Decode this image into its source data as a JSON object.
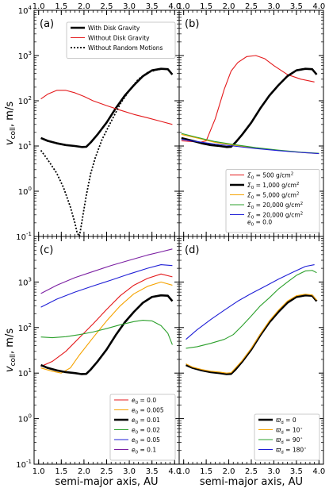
{
  "figure": {
    "xlabel": "semi-major axis, AU",
    "ylabel_main": "v",
    "ylabel_sub": "coll",
    "ylabel_suffix": ", m/s"
  },
  "chart_data": [
    {
      "type": "line",
      "panel_label": "(a)",
      "x_ticks": [
        "1.0",
        "1.5",
        "2.0",
        "2.5",
        "3.0",
        "3.5",
        "4.0"
      ],
      "y_ticks": [
        {
          "base": "10",
          "exp": "-1"
        },
        {
          "base": "10",
          "exp": "0"
        },
        {
          "base": "10",
          "exp": "1"
        },
        {
          "base": "10",
          "exp": "2"
        },
        {
          "base": "10",
          "exp": "3"
        },
        {
          "base": "10",
          "exp": "4"
        }
      ],
      "xlim": [
        0.9,
        4.1
      ],
      "ylim": [
        0.1,
        10000
      ],
      "yscale": "log",
      "legend_position": "top-right",
      "series": [
        {
          "name": "With Disk Gravity",
          "color": "#000000",
          "width": 2.6,
          "dash": "",
          "x": [
            1.05,
            1.2,
            1.4,
            1.6,
            1.8,
            1.95,
            2.05,
            2.15,
            2.3,
            2.5,
            2.7,
            2.9,
            3.1,
            3.3,
            3.5,
            3.7,
            3.85,
            3.95
          ],
          "y": [
            15,
            13,
            11.5,
            10.5,
            10,
            9.5,
            9.6,
            12,
            18,
            33,
            68,
            130,
            220,
            350,
            470,
            510,
            500,
            380
          ]
        },
        {
          "name": "Without Disk Gravity",
          "color": "#e41a1c",
          "width": 1.1,
          "dash": "",
          "x": [
            1.05,
            1.2,
            1.4,
            1.6,
            1.8,
            2.0,
            2.2,
            2.5,
            2.8,
            3.1,
            3.4,
            3.7,
            3.95
          ],
          "y": [
            110,
            140,
            170,
            170,
            150,
            125,
            100,
            78,
            62,
            50,
            42,
            35,
            30
          ]
        },
        {
          "name": "Without Random Motions",
          "color": "#000000",
          "width": 1.8,
          "dash": "2,2",
          "x": [
            1.05,
            1.2,
            1.4,
            1.55,
            1.7,
            1.8,
            1.85,
            1.9,
            1.95,
            2.05,
            2.15,
            2.25,
            2.4,
            2.6,
            2.8,
            3.0,
            3.2,
            3.4,
            3.6,
            3.75
          ],
          "y": [
            8,
            5,
            2.5,
            1.2,
            0.45,
            0.2,
            0.12,
            0.1,
            0.2,
            0.8,
            2.5,
            5.5,
            14,
            35,
            85,
            170,
            300,
            420,
            480,
            510
          ]
        }
      ]
    },
    {
      "type": "line",
      "panel_label": "(b)",
      "x_ticks": [
        "1.0",
        "1.5",
        "2.0",
        "2.5",
        "3.0",
        "3.5",
        "4.0"
      ],
      "xlim": [
        0.9,
        4.1
      ],
      "ylim": [
        0.1,
        10000
      ],
      "yscale": "log",
      "legend_position": "bottom-right",
      "series": [
        {
          "name": "Σ0 = 500 g/cm²",
          "label_html": [
            "Σ",
            "0",
            " = 500 g/cm",
            "2"
          ],
          "color": "#e41a1c",
          "width": 1.1,
          "dash": "",
          "x": [
            0.95,
            1.2,
            1.35,
            1.5,
            1.7,
            1.9,
            2.05,
            2.2,
            2.4,
            2.6,
            2.8,
            3.0,
            3.3,
            3.6,
            3.9
          ],
          "y": [
            13,
            12.5,
            12,
            13,
            40,
            180,
            450,
            700,
            950,
            1000,
            850,
            600,
            380,
            300,
            260
          ]
        },
        {
          "name": "Σ0 = 1,000 g/cm²",
          "label_html": [
            "Σ",
            "0",
            " = 1,000 g/cm",
            "2"
          ],
          "color": "#000000",
          "width": 2.6,
          "dash": "",
          "x": [
            0.95,
            1.2,
            1.4,
            1.6,
            1.8,
            1.95,
            2.05,
            2.15,
            2.3,
            2.5,
            2.7,
            2.9,
            3.1,
            3.3,
            3.5,
            3.7,
            3.85,
            3.95
          ],
          "y": [
            15,
            13,
            11.5,
            10.5,
            10,
            9.5,
            9.6,
            12,
            18,
            33,
            68,
            130,
            220,
            350,
            470,
            510,
            500,
            380
          ]
        },
        {
          "name": "Σ0 = 5,000 g/cm²",
          "label_html": [
            "Σ",
            "0",
            " = 5,000 g/cm",
            "2"
          ],
          "color": "#f5a300",
          "width": 1.1,
          "dash": "",
          "x": [
            0.95,
            1.3,
            1.7,
            2.1,
            2.6,
            3.1,
            3.6,
            4.0
          ],
          "y": [
            18,
            15,
            12,
            10.5,
            9,
            8,
            7.2,
            6.8
          ]
        },
        {
          "name": "Σ0 = 20,000 g/cm²",
          "label_html": [
            "Σ",
            "0",
            " = 20,000 g/cm",
            "2"
          ],
          "color": "#2ca02c",
          "width": 1.1,
          "dash": "",
          "x": [
            0.95,
            1.3,
            1.7,
            2.1,
            2.6,
            3.1,
            3.6,
            4.0
          ],
          "y": [
            19,
            15.5,
            12.5,
            10.8,
            9.2,
            8.1,
            7.3,
            6.9
          ]
        },
        {
          "name": "Σ0 = 20,000 g/cm², e0 = 0.0",
          "label_html": [
            "Σ",
            "0",
            " = 20,000 g/cm",
            "2"
          ],
          "label_line2": [
            "e",
            "0",
            " = 0.0"
          ],
          "color": "#1f1fd6",
          "width": 1.1,
          "dash": "",
          "x": [
            0.95,
            1.3,
            1.7,
            2.1,
            2.6,
            3.1,
            3.6,
            4.0
          ],
          "y": [
            14,
            12.5,
            11,
            10,
            8.8,
            7.9,
            7.2,
            6.8
          ]
        }
      ]
    },
    {
      "type": "line",
      "panel_label": "(c)",
      "x_ticks": [
        "1.0",
        "1.5",
        "2.0",
        "2.5",
        "3.0",
        "3.5",
        "4.0"
      ],
      "y_ticks": [
        {
          "base": "10",
          "exp": "-1"
        },
        {
          "base": "10",
          "exp": "0"
        },
        {
          "base": "10",
          "exp": "1"
        },
        {
          "base": "10",
          "exp": "2"
        },
        {
          "base": "10",
          "exp": "3"
        },
        {
          "base": "10",
          "exp": "4"
        }
      ],
      "xlim": [
        0.9,
        4.1
      ],
      "ylim": [
        0.1,
        10000
      ],
      "yscale": "log",
      "legend_position": "bottom-right",
      "series": [
        {
          "name": "e0 = 0.0",
          "label_html": [
            "e",
            "0",
            " = 0.0",
            ""
          ],
          "color": "#e41a1c",
          "width": 1.1,
          "dash": "",
          "x": [
            1.05,
            1.3,
            1.6,
            1.9,
            2.2,
            2.5,
            2.8,
            3.1,
            3.4,
            3.7,
            3.95
          ],
          "y": [
            14,
            18,
            30,
            60,
            120,
            250,
            500,
            850,
            1200,
            1500,
            1300
          ]
        },
        {
          "name": "e0 = 0.005",
          "label_html": [
            "e",
            "0",
            " = 0.005",
            ""
          ],
          "color": "#f5a300",
          "width": 1.1,
          "dash": "",
          "x": [
            1.05,
            1.3,
            1.5,
            1.7,
            1.9,
            2.2,
            2.5,
            2.8,
            3.1,
            3.4,
            3.7,
            3.95
          ],
          "y": [
            13,
            11,
            10,
            13,
            25,
            60,
            140,
            300,
            550,
            800,
            1000,
            850
          ]
        },
        {
          "name": "e0 = 0.01",
          "label_html": [
            "e",
            "0",
            " = 0.01",
            ""
          ],
          "color": "#000000",
          "width": 2.6,
          "dash": "",
          "x": [
            1.05,
            1.2,
            1.4,
            1.6,
            1.8,
            1.95,
            2.05,
            2.15,
            2.3,
            2.5,
            2.7,
            2.9,
            3.1,
            3.3,
            3.5,
            3.7,
            3.85,
            3.95
          ],
          "y": [
            15,
            13,
            11.5,
            10.5,
            10,
            9.5,
            9.6,
            12,
            18,
            33,
            68,
            130,
            220,
            350,
            470,
            510,
            500,
            380
          ]
        },
        {
          "name": "e0 = 0.02",
          "label_html": [
            "e",
            "0",
            " = 0.02",
            ""
          ],
          "color": "#2ca02c",
          "width": 1.1,
          "dash": "",
          "x": [
            1.05,
            1.3,
            1.6,
            1.9,
            2.2,
            2.5,
            2.8,
            3.1,
            3.3,
            3.5,
            3.7,
            3.85,
            3.95
          ],
          "y": [
            62,
            60,
            63,
            70,
            80,
            95,
            115,
            135,
            145,
            140,
            110,
            75,
            42
          ]
        },
        {
          "name": "e0 = 0.05",
          "label_html": [
            "e",
            "0",
            " = 0.05",
            ""
          ],
          "color": "#1f1fd6",
          "width": 1.1,
          "dash": "",
          "x": [
            1.05,
            1.4,
            1.8,
            2.2,
            2.6,
            3.0,
            3.4,
            3.7,
            3.95
          ],
          "y": [
            280,
            420,
            600,
            820,
            1100,
            1500,
            2000,
            2400,
            2300
          ]
        },
        {
          "name": "e0 = 0.1",
          "label_html": [
            "e",
            "0",
            " = 0.1",
            ""
          ],
          "color": "#7b1fa2",
          "width": 1.1,
          "dash": "",
          "x": [
            1.05,
            1.4,
            1.8,
            2.2,
            2.6,
            3.0,
            3.4,
            3.7,
            3.95
          ],
          "y": [
            560,
            850,
            1250,
            1700,
            2300,
            3000,
            3900,
            4600,
            5300
          ]
        }
      ]
    },
    {
      "type": "line",
      "panel_label": "(d)",
      "x_ticks": [
        "1.0",
        "1.5",
        "2.0",
        "2.5",
        "3.0",
        "3.5",
        "4.0"
      ],
      "xlim": [
        0.9,
        4.1
      ],
      "ylim": [
        0.1,
        10000
      ],
      "yscale": "log",
      "legend_position": "bottom-right",
      "series": [
        {
          "name": "ϖd = 0",
          "label_html": [
            "ϖ",
            "d",
            " = 0",
            ""
          ],
          "color": "#000000",
          "width": 2.6,
          "dash": "",
          "x": [
            1.05,
            1.2,
            1.4,
            1.6,
            1.8,
            1.95,
            2.05,
            2.15,
            2.3,
            2.5,
            2.7,
            2.9,
            3.1,
            3.3,
            3.5,
            3.7,
            3.85,
            3.95
          ],
          "y": [
            15,
            13,
            11.5,
            10.5,
            10,
            9.5,
            9.6,
            12,
            18,
            33,
            68,
            130,
            220,
            350,
            470,
            510,
            500,
            380
          ]
        },
        {
          "name": "ϖd = 10°",
          "label_html": [
            "ϖ",
            "d",
            " = 10",
            "∘"
          ],
          "color": "#f5a300",
          "width": 1.1,
          "dash": "",
          "x": [
            1.05,
            1.2,
            1.4,
            1.6,
            1.8,
            1.95,
            2.05,
            2.15,
            2.3,
            2.5,
            2.7,
            2.9,
            3.1,
            3.3,
            3.5,
            3.7,
            3.85,
            3.95
          ],
          "y": [
            16,
            13.5,
            12,
            11,
            10.5,
            10,
            10.2,
            13,
            19,
            35,
            72,
            140,
            240,
            380,
            500,
            540,
            520,
            400
          ]
        },
        {
          "name": "ϖd = 90°",
          "label_html": [
            "ϖ",
            "d",
            " = 90",
            "∘"
          ],
          "color": "#2ca02c",
          "width": 1.1,
          "dash": "",
          "x": [
            1.05,
            1.3,
            1.6,
            1.9,
            2.1,
            2.3,
            2.5,
            2.7,
            2.9,
            3.1,
            3.3,
            3.5,
            3.7,
            3.85,
            3.95
          ],
          "y": [
            35,
            38,
            45,
            55,
            70,
            110,
            180,
            300,
            450,
            700,
            1000,
            1400,
            1750,
            1800,
            1600
          ]
        },
        {
          "name": "ϖd = 180°",
          "label_html": [
            "ϖ",
            "d",
            " = 180",
            "∘"
          ],
          "color": "#1f1fd6",
          "width": 1.1,
          "dash": "",
          "x": [
            1.05,
            1.3,
            1.6,
            1.9,
            2.2,
            2.5,
            2.8,
            3.1,
            3.4,
            3.7,
            3.9
          ],
          "y": [
            55,
            90,
            150,
            240,
            380,
            560,
            800,
            1150,
            1600,
            2200,
            2400
          ]
        }
      ]
    }
  ]
}
